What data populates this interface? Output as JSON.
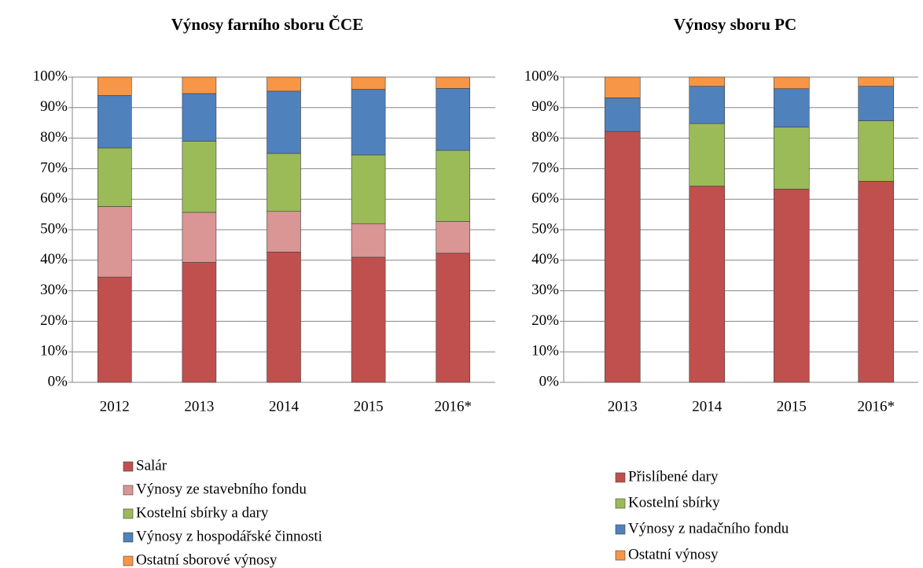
{
  "chart_data": [
    {
      "type": "stacked_bar",
      "title": "Výnosy farního sboru ČCE",
      "categories": [
        "2012",
        "2013",
        "2014",
        "2015",
        "2016*"
      ],
      "series": [
        {
          "name": "Salár",
          "color": "#c0504d",
          "values": [
            34.5,
            39.3,
            42.7,
            41,
            42.3
          ]
        },
        {
          "name": "Výnosy ze stavebního fondu",
          "color": "#d99694",
          "values": [
            23.1,
            16.4,
            13.3,
            11,
            10.4
          ]
        },
        {
          "name": "Kostelní sbírky a dary",
          "color": "#9bbb59",
          "values": [
            19.2,
            23.3,
            19,
            22.5,
            23.3
          ]
        },
        {
          "name": "Výnosy z hospodářské činnosti",
          "color": "#4f81bd",
          "values": [
            17.2,
            15.6,
            20.4,
            21.5,
            20.3
          ]
        },
        {
          "name": "Ostatní sborové výnosy",
          "color": "#f79646",
          "values": [
            6,
            5.4,
            4.6,
            4,
            3.7
          ]
        }
      ],
      "ylim": [
        0,
        100
      ],
      "yticks": [
        {
          "value": 0,
          "label": "0%"
        },
        {
          "value": 10,
          "label": "10%"
        },
        {
          "value": 20,
          "label": "20%"
        },
        {
          "value": 30,
          "label": "30%"
        },
        {
          "value": 40,
          "label": "40%"
        },
        {
          "value": 50,
          "label": "50%"
        },
        {
          "value": 60,
          "label": "60%"
        },
        {
          "value": 70,
          "label": "70%"
        },
        {
          "value": 80,
          "label": "80%"
        },
        {
          "value": 90,
          "label": "90%"
        },
        {
          "value": 100,
          "label": "100%"
        }
      ],
      "grid": true,
      "legend": "bottom"
    },
    {
      "type": "stacked_bar",
      "title": "Výnosy sboru PC",
      "categories": [
        "2013",
        "2014",
        "2015",
        "2016*"
      ],
      "series": [
        {
          "name": "Přislíbené dary",
          "color": "#c0504d",
          "values": [
            82.2,
            64.3,
            63.3,
            65.9
          ]
        },
        {
          "name": "Kostelní sbírky",
          "color": "#9bbb59",
          "values": [
            0,
            20.5,
            20.3,
            19.8
          ]
        },
        {
          "name": "Výnosy z nadačního fondu",
          "color": "#4f81bd",
          "values": [
            11,
            12.2,
            12.6,
            11.3
          ]
        },
        {
          "name": "Ostatní výnosy",
          "color": "#f79646",
          "values": [
            6.8,
            3,
            3.8,
            3
          ]
        }
      ],
      "ylim": [
        0,
        100
      ],
      "yticks": [
        {
          "value": 0,
          "label": "0%"
        },
        {
          "value": 10,
          "label": "10%"
        },
        {
          "value": 20,
          "label": "20%"
        },
        {
          "value": 30,
          "label": "30%"
        },
        {
          "value": 40,
          "label": "40%"
        },
        {
          "value": 50,
          "label": "50%"
        },
        {
          "value": 60,
          "label": "60%"
        },
        {
          "value": 70,
          "label": "70%"
        },
        {
          "value": 80,
          "label": "80%"
        },
        {
          "value": 90,
          "label": "90%"
        },
        {
          "value": 100,
          "label": "100%"
        }
      ],
      "grid": true,
      "legend": "bottom"
    }
  ]
}
